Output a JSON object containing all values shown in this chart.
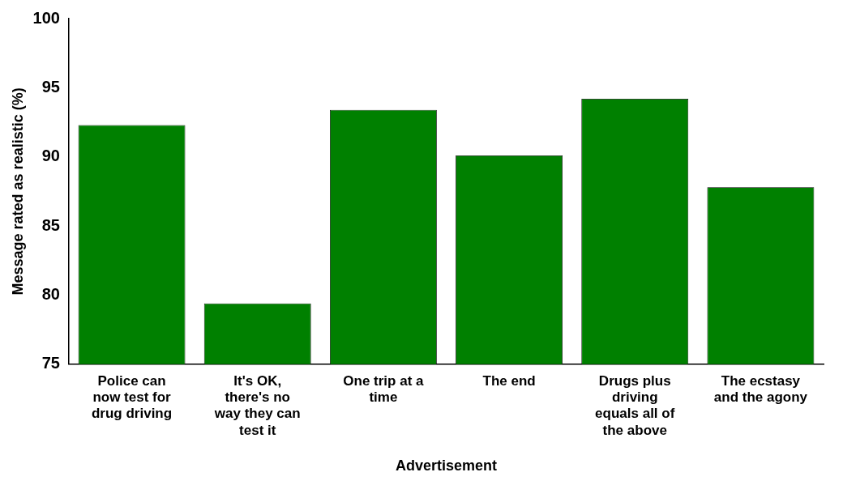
{
  "chart_data": {
    "type": "bar",
    "xlabel": "Advertisement",
    "ylabel": "Message rated as realistic (%)",
    "categories": [
      "Police can now test for drug driving",
      "It's OK, there's no way they can test it",
      "One trip at a time",
      "The end",
      "Drugs plus driving equals all of the above",
      "The ecstasy and the agony"
    ],
    "values": [
      92.3,
      79.4,
      93.4,
      90.1,
      94.2,
      87.8
    ],
    "color": "#008000",
    "ylim": [
      75,
      100
    ],
    "yticks": [
      75,
      80,
      85,
      90,
      95,
      100
    ],
    "grid": false,
    "legend": false
  }
}
